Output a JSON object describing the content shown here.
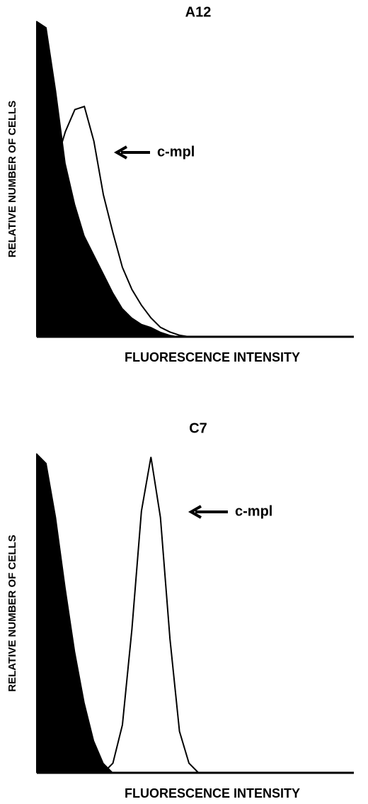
{
  "chart_data": [
    {
      "type": "area",
      "title": "A12",
      "x_label": "FLUORESCENCE INTENSITY",
      "y_label": "RELATIVE NUMBER OF CELLS",
      "annotation": "c-mpl",
      "x": [
        0,
        3,
        6,
        9,
        12,
        15,
        18,
        21,
        24,
        27,
        30,
        33,
        36,
        39,
        42,
        45,
        48
      ],
      "xlim": [
        0,
        100
      ],
      "ylim": [
        0,
        100
      ],
      "series": [
        {
          "style": "filled",
          "color": "#000000",
          "values": [
            100,
            98,
            78,
            55,
            42,
            32,
            26,
            20,
            14,
            9,
            6,
            4,
            3,
            1.5,
            0.5,
            0,
            0
          ]
        },
        {
          "style": "outline",
          "color": "#000000",
          "values": [
            null,
            50,
            55,
            65,
            72,
            73,
            62,
            45,
            33,
            22,
            15,
            10,
            6,
            3,
            1.5,
            0.5,
            0
          ]
        }
      ]
    },
    {
      "type": "area",
      "title": "C7",
      "x_label": "FLUORESCENCE INTENSITY",
      "y_label": "RELATIVE NUMBER OF CELLS",
      "annotation": "c-mpl",
      "x": [
        0,
        3,
        6,
        9,
        12,
        15,
        18,
        21,
        24,
        27,
        30,
        33,
        36,
        39,
        42,
        45,
        48,
        51
      ],
      "xlim": [
        0,
        100
      ],
      "ylim": [
        0,
        100
      ],
      "series": [
        {
          "style": "filled",
          "color": "#000000",
          "values": [
            100,
            97,
            80,
            58,
            38,
            22,
            10,
            3,
            0,
            0,
            0,
            0,
            0,
            0,
            0,
            0,
            0,
            0
          ]
        },
        {
          "style": "outline",
          "color": "#000000",
          "values": [
            null,
            null,
            null,
            null,
            null,
            null,
            null,
            0,
            3,
            15,
            45,
            82,
            99,
            80,
            42,
            13,
            3,
            0
          ]
        }
      ]
    }
  ]
}
